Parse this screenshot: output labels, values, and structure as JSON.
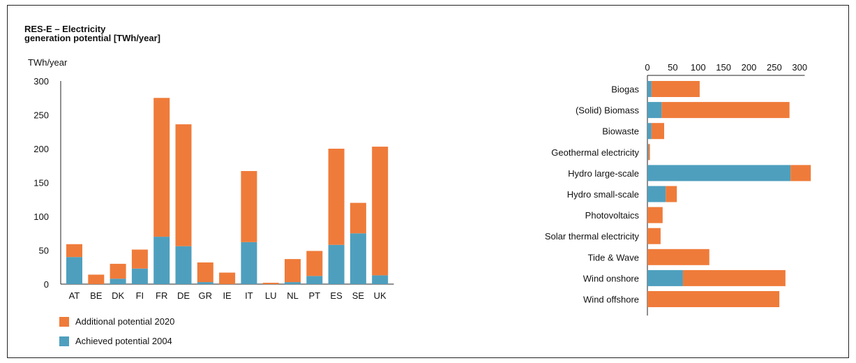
{
  "title": {
    "line1": "RES-E – Electricity",
    "line2": "generation potential [TWh/year]"
  },
  "colors": {
    "additional": "#ef7b3a",
    "achieved": "#4e9fbe"
  },
  "legend": [
    {
      "label": "Additional potential 2020",
      "color": "#ef7b3a"
    },
    {
      "label": "Achieved potential 2004",
      "color": "#4e9fbe"
    }
  ],
  "chart_data": [
    {
      "type": "bar",
      "stacked": true,
      "orientation": "vertical",
      "ylabel": "TWh/year",
      "ylim": [
        0,
        300
      ],
      "yticks": [
        0,
        50,
        100,
        150,
        200,
        250,
        300
      ],
      "categories": [
        "AT",
        "BE",
        "DK",
        "FI",
        "FR",
        "DE",
        "GR",
        "IE",
        "IT",
        "LU",
        "NL",
        "PT",
        "ES",
        "SE",
        "UK"
      ],
      "series": [
        {
          "name": "Achieved potential 2004",
          "color": "#4e9fbe",
          "values": [
            40,
            0,
            8,
            23,
            70,
            56,
            3,
            0,
            62,
            0,
            3,
            12,
            58,
            75,
            13
          ]
        },
        {
          "name": "Additional potential 2020",
          "color": "#ef7b3a",
          "values": [
            19,
            14,
            22,
            28,
            205,
            180,
            29,
            17,
            105,
            2,
            34,
            37,
            142,
            45,
            190
          ]
        }
      ]
    },
    {
      "type": "bar",
      "stacked": true,
      "orientation": "horizontal",
      "xlim": [
        0,
        310
      ],
      "xticks": [
        0,
        50,
        100,
        150,
        200,
        250,
        300
      ],
      "categories": [
        "Biogas",
        "(Solid) Biomass",
        "Biowaste",
        "Geothermal electricity",
        "Hydro large-scale",
        "Hydro small-scale",
        "Photovoltaics",
        "Solar thermal electricity",
        "Tide & Wave",
        "Wind onshore",
        "Wind offshore"
      ],
      "series": [
        {
          "name": "Achieved potential 2004",
          "color": "#4e9fbe",
          "values": [
            8,
            28,
            8,
            2,
            282,
            36,
            0,
            0,
            0,
            70,
            0
          ]
        },
        {
          "name": "Additional potential 2020",
          "color": "#ef7b3a",
          "values": [
            95,
            252,
            25,
            3,
            40,
            22,
            30,
            26,
            122,
            202,
            260
          ]
        }
      ]
    }
  ]
}
